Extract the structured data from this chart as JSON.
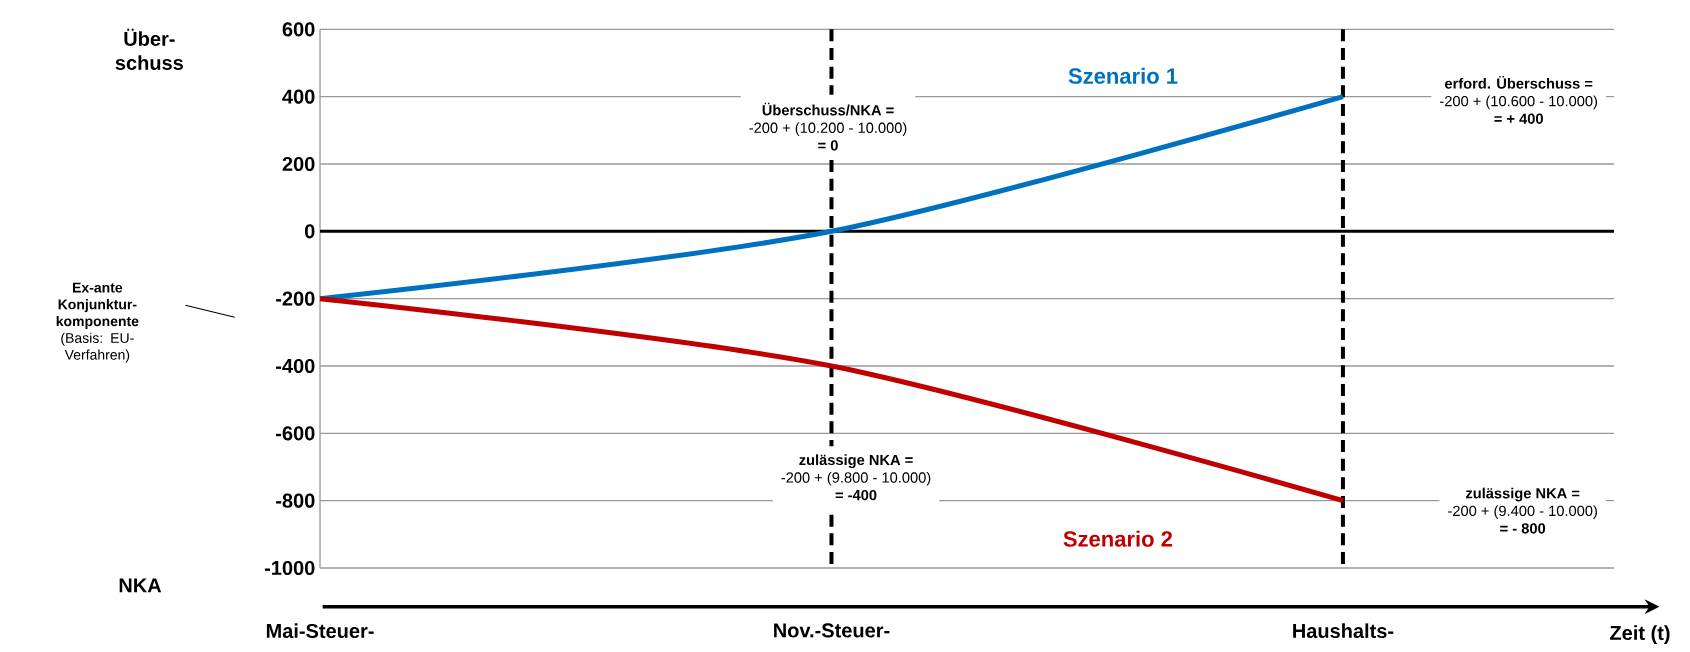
{
  "chart_data": {
    "type": "line",
    "xlabel": "Zeit (t)",
    "categories": [
      "Mai-Steuer-",
      "Nov.-Steuer-",
      "Haushalts-"
    ],
    "ylim": [
      -1000,
      600
    ],
    "yticks": [
      -1000,
      -800,
      -600,
      -400,
      -200,
      0,
      200,
      400,
      600
    ],
    "grid": "y",
    "marker": "none",
    "series": [
      {
        "name": "Szenario 1",
        "color": "#0070c0",
        "values": [
          -200,
          0,
          400
        ]
      },
      {
        "name": "Szenario 2",
        "color": "#c00000",
        "values": [
          -200,
          -400,
          -800
        ]
      }
    ],
    "ref_lines": [
      {
        "axis": "y",
        "value": 0,
        "color": "#000000",
        "line_style": "solid"
      },
      {
        "axis": "x",
        "value": "Nov.-Steuer-",
        "color": "#000000",
        "line_style": "dashed"
      },
      {
        "axis": "x",
        "value": "Haushalts-",
        "color": "#000000",
        "line_style": "dashed"
      }
    ],
    "annotations": [
      "Über-schuss",
      "NKA",
      "**Ex-ante Konjunktur-komponente** (Basis: EU-Verfahren)",
      "Überschuss/NKA =",
      "-200 + (10.200 - 10.000)",
      "= 0",
      "zulässige NKA =",
      "-200 + (9.800 - 10.000)",
      "= -400",
      "erford. Überschuss =",
      "-200 + (10.600 - 10.000)",
      "= + 400",
      "zulässige NKA =",
      "-200 + (9.400 - 10.000)",
      "= - 800"
    ]
  }
}
